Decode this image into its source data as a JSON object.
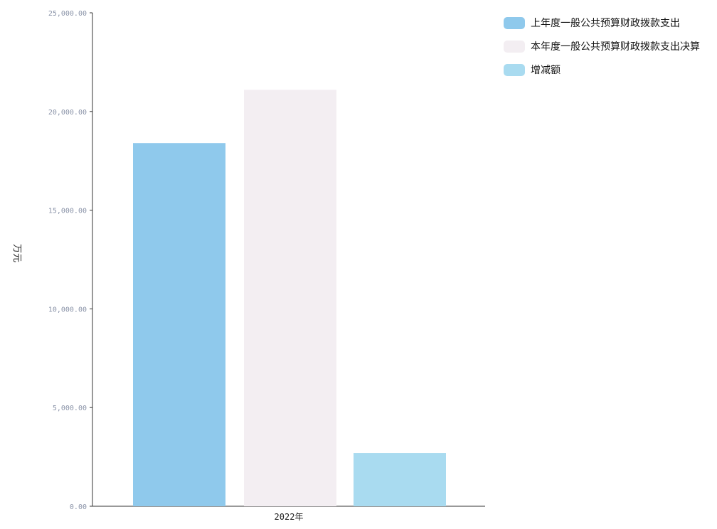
{
  "chart_data": {
    "type": "bar",
    "categories": [
      "2022年"
    ],
    "series": [
      {
        "name": "上年度一般公共预算财政拨款支出",
        "values": [
          18400
        ],
        "color": "#8fc9ec"
      },
      {
        "name": "本年度一般公共预算财政拨款支出决算",
        "values": [
          21100
        ],
        "color": "#f3eef2"
      },
      {
        "name": "增减额",
        "values": [
          2700
        ],
        "color": "#a9dbf0"
      }
    ],
    "ylabel": "万元",
    "ylim": [
      0,
      25000
    ],
    "y_ticks": [
      0,
      5000,
      10000,
      15000,
      20000,
      25000
    ],
    "y_tick_labels": [
      "0.00",
      "5,000.00",
      "10,000.00",
      "15,000.00",
      "20,000.00",
      "25,000.00"
    ],
    "legend_position": "top-right",
    "grid": false
  }
}
